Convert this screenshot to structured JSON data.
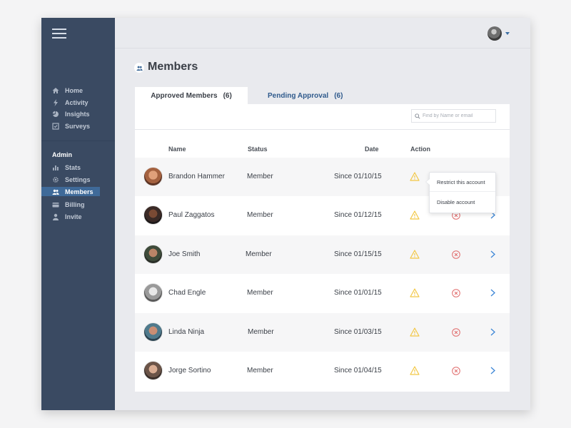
{
  "sidebar": {
    "menu_icon": "hamburger-icon",
    "items": [
      {
        "label": "Home",
        "icon": "home-icon"
      },
      {
        "label": "Activity",
        "icon": "lightning-icon"
      },
      {
        "label": "Insights",
        "icon": "pie-chart-icon"
      },
      {
        "label": "Surveys",
        "icon": "survey-icon"
      }
    ],
    "admin_heading": "Admin",
    "admin_items": [
      {
        "label": "Stats",
        "icon": "bar-chart-icon"
      },
      {
        "label": "Settings",
        "icon": "gear-icon"
      },
      {
        "label": "Members",
        "icon": "members-icon",
        "active": true
      },
      {
        "label": "Billing",
        "icon": "card-icon"
      },
      {
        "label": "Invite",
        "icon": "user-icon"
      }
    ]
  },
  "header": {
    "user_avatar": "user-avatar",
    "caret_icon": "caret-down-icon"
  },
  "page": {
    "title": "Members",
    "title_icon": "members-icon"
  },
  "tabs": [
    {
      "label": "Approved Members",
      "count": "(6)",
      "active": true
    },
    {
      "label": "Pending Approval",
      "count": "(6)",
      "active": false
    }
  ],
  "search": {
    "placeholder": "Find by Name or email",
    "value": ""
  },
  "table": {
    "columns": [
      "Name",
      "Status",
      "Date",
      "Action"
    ],
    "rows": [
      {
        "name": "Brandon Hammer",
        "status": "Member",
        "date": "Since 01/10/15"
      },
      {
        "name": "Paul Zaggatos",
        "status": "Member",
        "date": "Since 01/12/15"
      },
      {
        "name": "Joe Smith",
        "status": "Member",
        "date": "Since 01/15/15"
      },
      {
        "name": "Chad Engle",
        "status": "Member",
        "date": "Since 01/01/15"
      },
      {
        "name": "Linda Ninja",
        "status": "Member",
        "date": "Since 01/03/15"
      },
      {
        "name": "Jorge Sortino",
        "status": "Member",
        "date": "Since 01/04/15"
      }
    ]
  },
  "dropdown": {
    "items": [
      "Restrict this account",
      "Disable account"
    ]
  },
  "colors": {
    "sidebar": "#3a4a62",
    "active": "#3f6a99",
    "warning": "#f2c744",
    "danger": "#e06b6b",
    "link": "#3c86d6"
  }
}
